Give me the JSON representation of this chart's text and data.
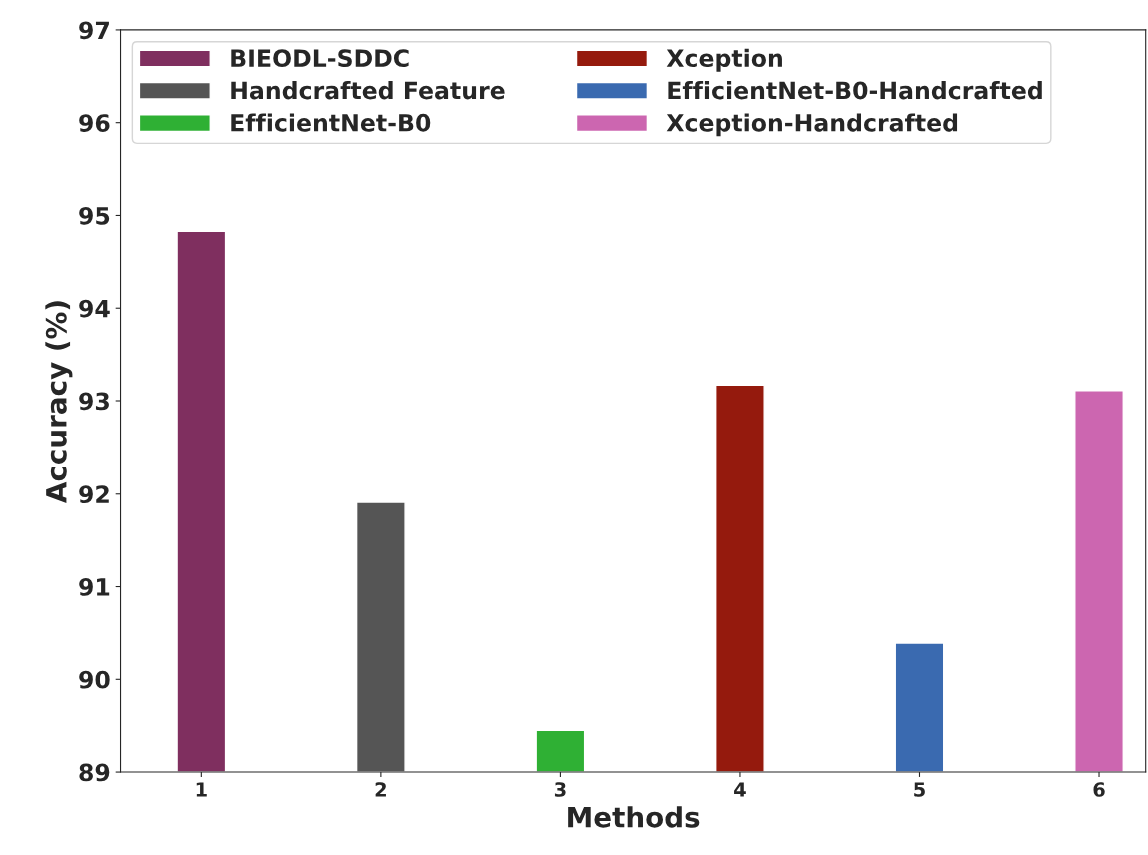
{
  "chart_data": {
    "type": "bar",
    "xlabel": "Methods",
    "ylabel": "Accuracy (%)",
    "categories": [
      "1",
      "2",
      "3",
      "4",
      "5",
      "6"
    ],
    "series": [
      {
        "name": "BIEODL-SDDC",
        "color": "#7f2f5f",
        "values": [
          94.83,
          null,
          null,
          null,
          null,
          null
        ]
      },
      {
        "name": "Handcrafted Feature",
        "color": "#555555",
        "values": [
          null,
          91.91,
          null,
          null,
          null,
          null
        ]
      },
      {
        "name": "EfficientNet-B0",
        "color": "#2fb034",
        "values": [
          null,
          null,
          89.45,
          null,
          null,
          null
        ]
      },
      {
        "name": "Xception",
        "color": "#951a0d",
        "values": [
          null,
          null,
          null,
          93.17,
          null,
          null
        ]
      },
      {
        "name": "EfficientNet-B0-Handcrafted",
        "color": "#3a6ab0",
        "values": [
          null,
          null,
          null,
          null,
          90.39,
          null
        ]
      },
      {
        "name": "Xception-Handcrafted",
        "color": "#cc66b0",
        "values": [
          null,
          null,
          null,
          null,
          null,
          93.11
        ]
      }
    ],
    "ylim": [
      89,
      97
    ],
    "yticks": [
      89,
      90,
      91,
      92,
      93,
      94,
      95,
      96,
      97
    ],
    "grid": false,
    "legend": "top left"
  }
}
